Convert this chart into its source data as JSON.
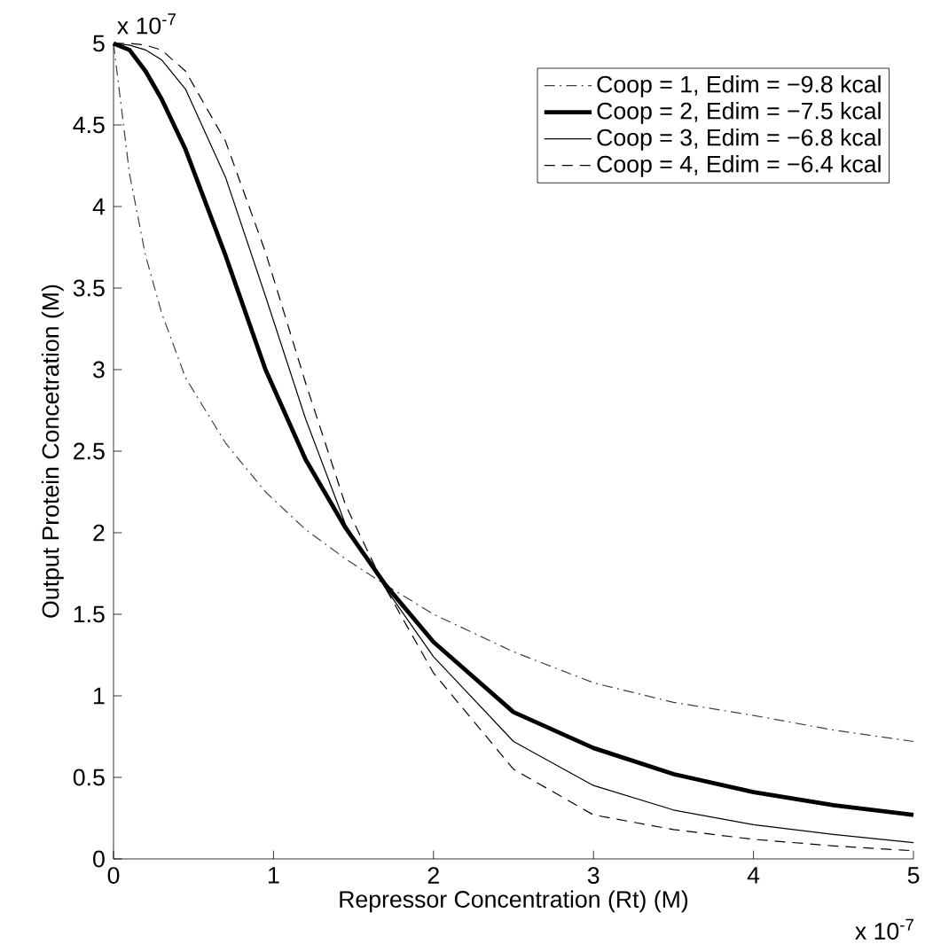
{
  "chart_data": {
    "type": "line",
    "xlabel": "Repressor Concentration (Rt) (M)",
    "ylabel": "Output Protein Concetration (M)",
    "x": [
      0,
      0.1,
      0.2,
      0.3,
      0.45,
      0.7,
      0.95,
      1.2,
      1.45,
      1.7,
      2,
      2.5,
      3,
      3.5,
      4,
      4.5,
      5
    ],
    "series": [
      {
        "name": "Coop = 1, Edim = −9.8 kcal",
        "color": "#404040",
        "line_style": "dashdot",
        "values": [
          5,
          4.2,
          3.7,
          3.35,
          2.95,
          2.55,
          2.25,
          2.02,
          1.84,
          1.68,
          1.5,
          1.27,
          1.08,
          0.96,
          0.88,
          0.79,
          0.72
        ]
      },
      {
        "name": "Coop = 2, Edim = −7.5 kcal",
        "color": "#000000",
        "line_style": "solid",
        "values": [
          5,
          4.96,
          4.83,
          4.66,
          4.35,
          3.7,
          3.0,
          2.45,
          2.03,
          1.68,
          1.33,
          0.9,
          0.68,
          0.52,
          0.41,
          0.33,
          0.27
        ]
      },
      {
        "name": "Coop = 3, Edim = −6.8 kcal",
        "color": "#000000",
        "line_style": "solid",
        "values": [
          5,
          4.99,
          4.96,
          4.9,
          4.72,
          4.18,
          3.45,
          2.7,
          2.05,
          1.66,
          1.24,
          0.72,
          0.45,
          0.3,
          0.21,
          0.15,
          0.1
        ]
      },
      {
        "name": "Coop = 4, Edim = −6.4 kcal",
        "color": "#000000",
        "line_style": "dashed",
        "values": [
          5,
          5,
          4.99,
          4.96,
          4.83,
          4.4,
          3.72,
          2.92,
          2.17,
          1.66,
          1.14,
          0.55,
          0.27,
          0.18,
          0.12,
          0.08,
          0.05
        ]
      }
    ],
    "xlim": [
      0,
      5
    ],
    "ylim": [
      0,
      5
    ],
    "xticks": [
      0,
      1,
      2,
      3,
      4,
      5
    ],
    "yticks": [
      0,
      0.5,
      1,
      1.5,
      2,
      2.5,
      3,
      3.5,
      4,
      4.5,
      5
    ],
    "annotations": [
      "x 10$^{-7}$",
      "x 10$^{-7}$"
    ],
    "grid": false,
    "legend": "top right"
  }
}
